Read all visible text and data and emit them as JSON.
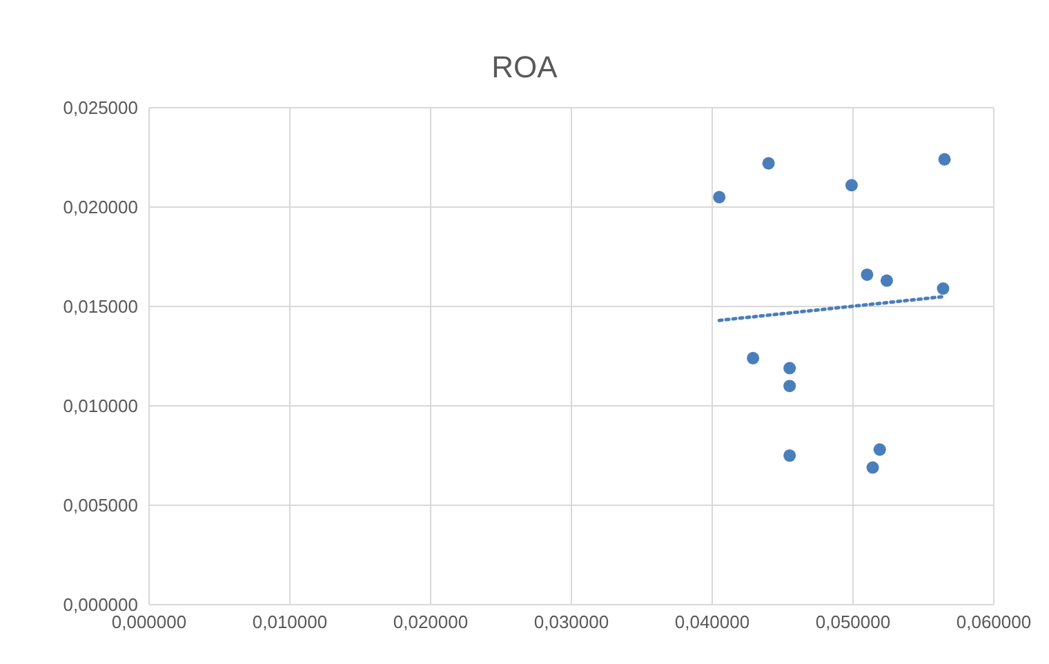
{
  "chart_data": {
    "type": "scatter",
    "title": "ROA",
    "grid": true,
    "legend": false,
    "marker": "circle",
    "xlim": [
      0,
      0.06
    ],
    "xticks": [
      {
        "value": 0,
        "label": "0,000000"
      },
      {
        "value": 0.01,
        "label": "0,010000"
      },
      {
        "value": 0.02,
        "label": "0,020000"
      },
      {
        "value": 0.03,
        "label": "0,030000"
      },
      {
        "value": 0.04,
        "label": "0,040000"
      },
      {
        "value": 0.05,
        "label": "0,050000"
      },
      {
        "value": 0.06,
        "label": "0,060000"
      }
    ],
    "ylim": [
      0,
      0.025
    ],
    "yticks": [
      {
        "value": 0,
        "label": "0,000000"
      },
      {
        "value": 0.005,
        "label": "0,005000"
      },
      {
        "value": 0.01,
        "label": "0,010000"
      },
      {
        "value": 0.015,
        "label": "0,015000"
      },
      {
        "value": 0.02,
        "label": "0,020000"
      },
      {
        "value": 0.025,
        "label": "0,025000"
      }
    ],
    "series": [
      {
        "color": "#4a7ebb",
        "x": [
          0.0405,
          0.044,
          0.0499,
          0.0565,
          0.051,
          0.0524,
          0.0564,
          0.0429,
          0.0455,
          0.0455,
          0.0455,
          0.0519,
          0.0514
        ],
        "values": [
          0.0205,
          0.0222,
          0.0211,
          0.0224,
          0.0166,
          0.0163,
          0.0159,
          0.0124,
          0.0119,
          0.011,
          0.0075,
          0.0078,
          0.0069
        ]
      },
      {
        "type": "line",
        "color": "#4a7ebb",
        "line_style": "dotted",
        "marker": "none",
        "x": [
          0.0405,
          0.0565
        ],
        "values": [
          0.0143,
          0.0155
        ]
      }
    ]
  }
}
